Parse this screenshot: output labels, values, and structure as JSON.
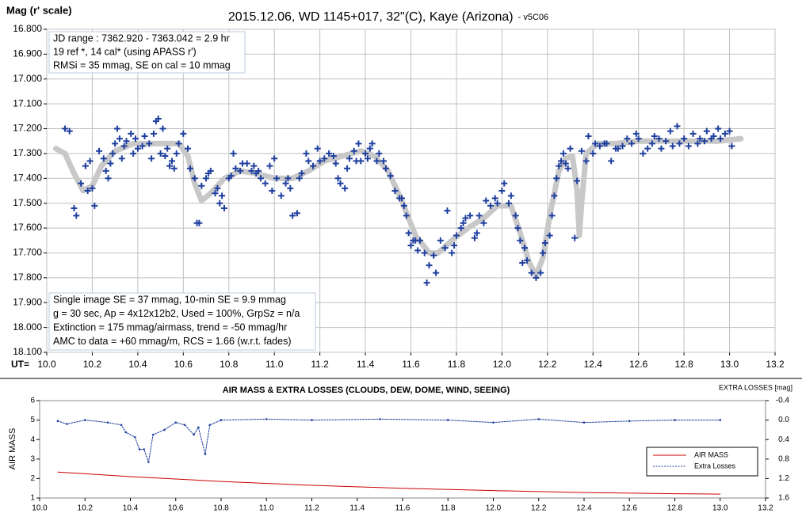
{
  "charts": [
    {
      "type": "scatter",
      "title": "2015.12.06, WD 1145+017, 32\"(C), Kaye (Arizona)",
      "title_suffix": "- v5C06",
      "ylabel": "Mag (r' scale)",
      "xlabel": "UT=",
      "xlim": [
        10.0,
        13.2
      ],
      "ylim": [
        16.8,
        18.1
      ],
      "y_inverted": true,
      "grid": true,
      "xticks": [
        {
          "value": 10.0,
          "label": "10.0"
        },
        10.2,
        10.4,
        10.6,
        10.8,
        {
          "value": 11.0,
          "label": "11.0"
        },
        11.2,
        11.4,
        11.6,
        11.8,
        {
          "value": 12.0,
          "label": "12.0"
        },
        12.2,
        12.4,
        12.6,
        12.8,
        {
          "value": 13.0,
          "label": "13.0"
        },
        13.2
      ],
      "yticks": [
        {
          "value": 16.8,
          "label": "16.800"
        },
        {
          "value": 16.9,
          "label": "16.900"
        },
        {
          "value": 17.0,
          "label": "17.000"
        },
        {
          "value": 17.1,
          "label": "17.100"
        },
        {
          "value": 17.2,
          "label": "17.200"
        },
        {
          "value": 17.3,
          "label": "17.300"
        },
        {
          "value": 17.4,
          "label": "17.400"
        },
        {
          "value": 17.5,
          "label": "17.500"
        },
        {
          "value": 17.6,
          "label": "17.600"
        },
        {
          "value": 17.7,
          "label": "17.700"
        },
        {
          "value": 17.8,
          "label": "17.800"
        },
        {
          "value": 17.9,
          "label": "17.900"
        },
        {
          "value": 18.0,
          "label": "18.000"
        },
        {
          "value": 18.1,
          "label": "18.100"
        }
      ],
      "annotations": [
        [
          "JD range : 7362.920 - 7363.042 = 2.9 hr",
          "19 ref *, 14 cal* (using APASS r')",
          "RMSi = 35 mmag, SE on cal = 10 mmag"
        ],
        [
          "Single image SE = 37 mmag, 10-min SE = 9.9 mmag",
          "g = 30 sec, Ap = 4x12x12b2, Used = 100%, GrpSz = n/a",
          "Extinction = 175 mmag/airmass, trend = -50 mmag/hr",
          "AMC to data = +60 mmag/m, RCS = 1.66 (w.r.t. fades)"
        ]
      ],
      "series": [
        {
          "mode": "line",
          "color": "#c8c8c8",
          "x": [
            10.04,
            10.08,
            10.12,
            10.16,
            10.2,
            10.24,
            10.3,
            10.38,
            10.5,
            10.58,
            10.62,
            10.65,
            10.68,
            10.72,
            10.78,
            10.85,
            10.92,
            11.0,
            11.08,
            11.15,
            11.22,
            11.3,
            11.38,
            11.44,
            11.5,
            11.56,
            11.62,
            11.68,
            11.72,
            11.78,
            11.85,
            11.92,
            11.98,
            12.04,
            12.08,
            12.12,
            12.15,
            12.18,
            12.21,
            12.25,
            12.28,
            12.31,
            12.33,
            12.34,
            12.35,
            12.37,
            12.42,
            12.5,
            12.6,
            12.8,
            12.95,
            13.05
          ],
          "values": [
            17.28,
            17.3,
            17.38,
            17.45,
            17.43,
            17.35,
            17.29,
            17.26,
            17.26,
            17.26,
            17.31,
            17.42,
            17.49,
            17.46,
            17.4,
            17.37,
            17.38,
            17.4,
            17.4,
            17.37,
            17.33,
            17.31,
            17.29,
            17.31,
            17.37,
            17.49,
            17.63,
            17.7,
            17.7,
            17.65,
            17.6,
            17.56,
            17.51,
            17.51,
            17.62,
            17.74,
            17.79,
            17.72,
            17.55,
            17.37,
            17.32,
            17.31,
            17.45,
            17.63,
            17.5,
            17.3,
            17.26,
            17.26,
            17.25,
            17.25,
            17.25,
            17.24
          ]
        },
        {
          "mode": "markers",
          "color": "#1f3f9f",
          "x": [
            10.08,
            10.1,
            10.12,
            10.13,
            10.15,
            10.17,
            10.18,
            10.19,
            10.2,
            10.21,
            10.23,
            10.25,
            10.26,
            10.27,
            10.28,
            10.29,
            10.3,
            10.31,
            10.32,
            10.33,
            10.34,
            10.35,
            10.37,
            10.38,
            10.39,
            10.4,
            10.42,
            10.43,
            10.45,
            10.46,
            10.47,
            10.48,
            10.49,
            10.5,
            10.51,
            10.52,
            10.53,
            10.54,
            10.55,
            10.56,
            10.57,
            10.58,
            10.6,
            10.62,
            10.63,
            10.65,
            10.66,
            10.67,
            10.68,
            10.7,
            10.71,
            10.72,
            10.74,
            10.75,
            10.76,
            10.77,
            10.78,
            10.8,
            10.81,
            10.82,
            10.83,
            10.85,
            10.86,
            10.88,
            10.9,
            10.91,
            10.92,
            10.93,
            10.94,
            10.96,
            10.98,
            10.99,
            11.0,
            11.01,
            11.03,
            11.05,
            11.06,
            11.07,
            11.08,
            11.1,
            11.11,
            11.12,
            11.14,
            11.15,
            11.17,
            11.19,
            11.2,
            11.22,
            11.24,
            11.26,
            11.27,
            11.28,
            11.29,
            11.31,
            11.32,
            11.33,
            11.35,
            11.36,
            11.37,
            11.38,
            11.4,
            11.41,
            11.42,
            11.43,
            11.45,
            11.46,
            11.48,
            11.49,
            11.51,
            11.53,
            11.55,
            11.56,
            11.57,
            11.58,
            11.59,
            11.6,
            11.61,
            11.62,
            11.63,
            11.64,
            11.66,
            11.67,
            11.68,
            11.7,
            11.71,
            11.73,
            11.75,
            11.76,
            11.78,
            11.79,
            11.8,
            11.82,
            11.83,
            11.84,
            11.86,
            11.88,
            11.89,
            11.9,
            11.92,
            11.93,
            11.95,
            11.97,
            11.98,
            12.0,
            12.01,
            12.03,
            12.04,
            12.06,
            12.07,
            12.08,
            12.09,
            12.1,
            12.11,
            12.13,
            12.15,
            12.17,
            12.18,
            12.19,
            12.21,
            12.22,
            12.23,
            12.24,
            12.25,
            12.26,
            12.27,
            12.28,
            12.29,
            12.3,
            12.32,
            12.33,
            12.35,
            12.37,
            12.38,
            12.4,
            12.41,
            12.43,
            12.45,
            12.46,
            12.48,
            12.5,
            12.51,
            12.53,
            12.55,
            12.57,
            12.59,
            12.6,
            12.62,
            12.64,
            12.66,
            12.67,
            12.69,
            12.7,
            12.72,
            12.74,
            12.75,
            12.77,
            12.78,
            12.8,
            12.82,
            12.84,
            12.86,
            12.87,
            12.89,
            12.9,
            12.92,
            12.93,
            12.95,
            12.96,
            12.98,
            13.0,
            13.01
          ],
          "values": [
            17.2,
            17.21,
            17.52,
            17.55,
            17.42,
            17.35,
            17.45,
            17.33,
            17.44,
            17.51,
            17.29,
            17.32,
            17.37,
            17.4,
            17.34,
            17.3,
            17.26,
            17.2,
            17.24,
            17.32,
            17.27,
            17.25,
            17.22,
            17.3,
            17.24,
            17.28,
            17.27,
            17.23,
            17.26,
            17.32,
            17.22,
            17.17,
            17.16,
            17.3,
            17.2,
            17.31,
            17.28,
            17.35,
            17.33,
            17.36,
            17.3,
            17.26,
            17.22,
            17.28,
            17.36,
            17.4,
            17.58,
            17.58,
            17.43,
            17.4,
            17.38,
            17.37,
            17.46,
            17.44,
            17.5,
            17.47,
            17.52,
            17.4,
            17.39,
            17.3,
            17.36,
            17.37,
            17.34,
            17.34,
            17.37,
            17.35,
            17.38,
            17.37,
            17.4,
            17.42,
            17.35,
            17.45,
            17.32,
            17.4,
            17.47,
            17.42,
            17.4,
            17.44,
            17.55,
            17.54,
            17.4,
            17.38,
            17.3,
            17.33,
            17.35,
            17.28,
            17.33,
            17.32,
            17.3,
            17.31,
            17.34,
            17.4,
            17.42,
            17.44,
            17.36,
            17.32,
            17.29,
            17.33,
            17.26,
            17.33,
            17.3,
            17.32,
            17.28,
            17.26,
            17.33,
            17.3,
            17.33,
            17.36,
            17.39,
            17.45,
            17.48,
            17.48,
            17.51,
            17.55,
            17.62,
            17.67,
            17.65,
            17.65,
            17.69,
            17.65,
            17.7,
            17.82,
            17.75,
            17.71,
            17.78,
            17.65,
            17.68,
            17.53,
            17.7,
            17.67,
            17.63,
            17.6,
            17.58,
            17.56,
            17.55,
            17.64,
            17.62,
            17.55,
            17.58,
            17.49,
            17.51,
            17.48,
            17.5,
            17.45,
            17.42,
            17.5,
            17.47,
            17.55,
            17.6,
            17.65,
            17.74,
            17.68,
            17.73,
            17.78,
            17.8,
            17.78,
            17.7,
            17.66,
            17.63,
            17.55,
            17.47,
            17.4,
            17.35,
            17.33,
            17.3,
            17.34,
            17.36,
            17.28,
            17.64,
            17.41,
            17.29,
            17.33,
            17.23,
            17.3,
            17.26,
            17.27,
            17.26,
            17.26,
            17.33,
            17.28,
            17.28,
            17.27,
            17.24,
            17.26,
            17.22,
            17.24,
            17.3,
            17.28,
            17.26,
            17.23,
            17.24,
            17.28,
            17.25,
            17.21,
            17.27,
            17.19,
            17.26,
            17.24,
            17.27,
            17.22,
            17.26,
            17.24,
            17.25,
            17.21,
            17.24,
            17.23,
            17.2,
            17.24,
            17.22,
            17.21,
            17.27
          ]
        }
      ]
    },
    {
      "type": "line",
      "title": "AIR MASS & EXTRA LOSSES (CLOUDS, DEW, DOME, WIND, SEEING)",
      "ylabel": "AIR MASS",
      "y2label": "EXTRA LOSSES [mag]",
      "legend": "lower right",
      "xlim": [
        10.0,
        13.2
      ],
      "ylim": [
        1,
        6
      ],
      "y2lim": [
        -0.4,
        1.6
      ],
      "y2_inverted": true,
      "xticks": [
        {
          "value": 10.0,
          "label": "10.0"
        },
        10.2,
        10.4,
        10.6,
        10.8,
        {
          "value": 11.0,
          "label": "11.0"
        },
        11.2,
        11.4,
        11.6,
        11.8,
        {
          "value": 12.0,
          "label": "12.0"
        },
        12.2,
        12.4,
        12.6,
        12.8,
        {
          "value": 13.0,
          "label": "13.0"
        },
        13.2
      ],
      "yticks": [
        1,
        2,
        3,
        4,
        5,
        6
      ],
      "y2ticks": [
        -0.4,
        {
          "value": 0,
          "label": "0.0"
        },
        0.4,
        0.8,
        1.2,
        1.6
      ],
      "series": [
        {
          "name": "AIR MASS",
          "color": "#cc0000",
          "x": [
            10.08,
            10.4,
            10.8,
            11.2,
            11.6,
            12.0,
            12.4,
            12.8,
            13.0
          ],
          "values": [
            2.33,
            2.1,
            1.85,
            1.65,
            1.5,
            1.38,
            1.28,
            1.22,
            1.2
          ]
        },
        {
          "name": "Extra Losses",
          "color": "#1f3f9f",
          "axis": "y2",
          "dotted": true,
          "x": [
            10.08,
            10.12,
            10.2,
            10.3,
            10.36,
            10.38,
            10.42,
            10.44,
            10.46,
            10.48,
            10.5,
            10.55,
            10.6,
            10.64,
            10.68,
            10.7,
            10.73,
            10.75,
            10.8,
            11.0,
            11.2,
            11.5,
            11.8,
            12.0,
            12.2,
            12.4,
            12.6,
            12.8,
            13.0
          ],
          "values": [
            0.02,
            0.08,
            0,
            0.05,
            0.1,
            0.25,
            0.35,
            0.6,
            0.6,
            0.86,
            0.3,
            0.2,
            0.05,
            0.1,
            0.3,
            0.15,
            0.7,
            0.1,
            0,
            -0.02,
            0,
            -0.02,
            0,
            0.05,
            -0.02,
            0.05,
            0.02,
            0,
            0
          ]
        }
      ]
    }
  ]
}
